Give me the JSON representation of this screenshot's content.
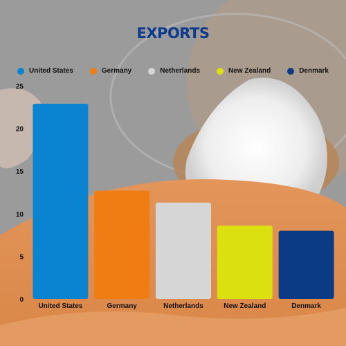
{
  "chart_data": {
    "type": "bar",
    "title": "EXPORTS",
    "categories": [
      "United States",
      "Germany",
      "Netherlands",
      "New Zealand",
      "Denmark"
    ],
    "values": [
      22.9,
      12.7,
      11.3,
      8.6,
      8.0
    ],
    "colors": [
      "#0a84d0",
      "#ef7d13",
      "#d6d6d6",
      "#dbe00f",
      "#0b3b84"
    ],
    "xlabel": "",
    "ylabel": "",
    "ylim": [
      0,
      25
    ],
    "yticks": [
      0,
      5,
      10,
      15,
      20,
      25
    ],
    "grid": false,
    "legend_position": "top"
  }
}
